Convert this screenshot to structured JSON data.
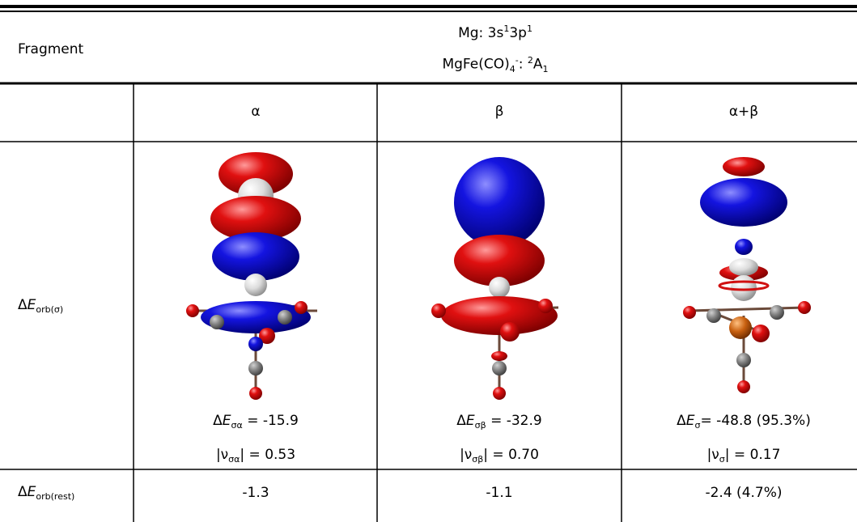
{
  "header": {
    "label": "Fragment",
    "lines": [
      [
        {
          "text": "Mg: 3s"
        },
        {
          "text": "1",
          "style": "sup"
        },
        {
          "text": "3p"
        },
        {
          "text": "1",
          "style": "sup"
        }
      ],
      [
        {
          "text": "MgFe(CO)"
        },
        {
          "text": "4",
          "style": "sub"
        },
        {
          "text": "-",
          "style": "sup"
        },
        {
          "text": ": "
        },
        {
          "text": "2",
          "style": "sup"
        },
        {
          "text": "A"
        },
        {
          "text": "1",
          "style": "sub"
        }
      ]
    ]
  },
  "columns": [
    "α",
    "β",
    "α+β"
  ],
  "rows": [
    {
      "label": [
        {
          "text": "Δ"
        },
        {
          "text": "E",
          "style": "italic"
        },
        {
          "text": "orb(σ)",
          "style": "sub"
        }
      ],
      "cells": [
        {
          "energy": [
            {
              "text": "Δ"
            },
            {
              "text": "E",
              "style": "italic"
            },
            {
              "text": "σα",
              "style": "sub"
            },
            {
              "text": " = -15.9"
            }
          ],
          "nu": [
            {
              "text": "|ν"
            },
            {
              "text": "σα",
              "style": "sub"
            },
            {
              "text": "| = 0.53"
            }
          ]
        },
        {
          "energy": [
            {
              "text": "Δ"
            },
            {
              "text": "E",
              "style": "italic"
            },
            {
              "text": "σβ",
              "style": "sub"
            },
            {
              "text": " = -32.9"
            }
          ],
          "nu": [
            {
              "text": "|ν"
            },
            {
              "text": "σβ",
              "style": "sub"
            },
            {
              "text": "| = 0.70"
            }
          ]
        },
        {
          "energy": [
            {
              "text": "Δ"
            },
            {
              "text": "E",
              "style": "italic"
            },
            {
              "text": "σ",
              "style": "sub"
            },
            {
              "text": "= -48.8 (95.3%)"
            }
          ],
          "nu": [
            {
              "text": "|ν"
            },
            {
              "text": "σ",
              "style": "sub"
            },
            {
              "text": "| = 0.17"
            }
          ]
        }
      ]
    },
    {
      "label": [
        {
          "text": "Δ"
        },
        {
          "text": "E",
          "style": "italic"
        },
        {
          "text": "orb(rest)",
          "style": "sub"
        }
      ],
      "cells": [
        "-1.3",
        "-1.1",
        "-2.4 (4.7%)"
      ]
    }
  ]
}
